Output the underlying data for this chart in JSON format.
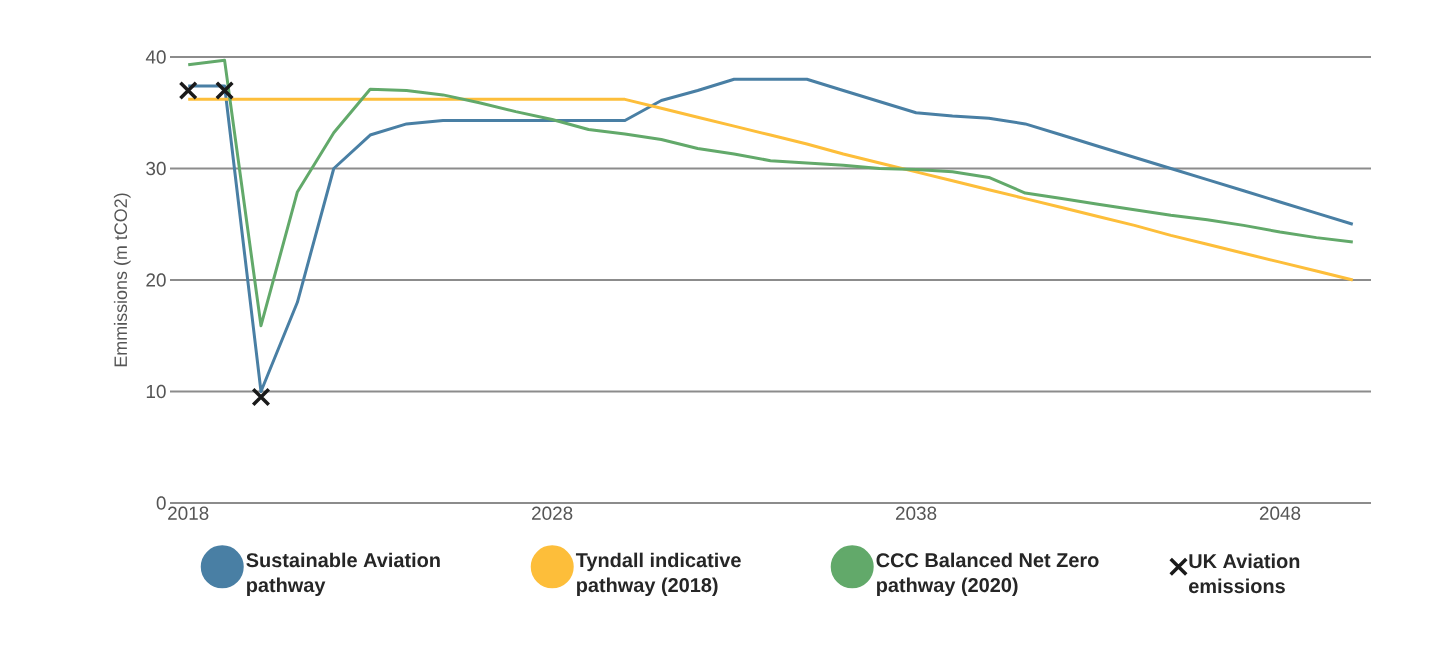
{
  "chart_data": {
    "type": "line",
    "ylabel": "Emmissions (m tCO2)",
    "x": [
      2018,
      2019,
      2020,
      2021,
      2022,
      2023,
      2024,
      2025,
      2026,
      2027,
      2028,
      2029,
      2030,
      2031,
      2032,
      2033,
      2034,
      2035,
      2036,
      2037,
      2038,
      2039,
      2040,
      2041,
      2042,
      2043,
      2044,
      2045,
      2046,
      2047,
      2048,
      2049,
      2050
    ],
    "series": [
      {
        "name": "Sustainable Aviation pathway",
        "color": "#497fa4",
        "marker": "none",
        "values": [
          37.4,
          37.4,
          10,
          18,
          30,
          33,
          34,
          34.3,
          34.3,
          34.3,
          34.3,
          34.3,
          34.3,
          36.1,
          37,
          38,
          38,
          38,
          37,
          36,
          35,
          34.7,
          34.5,
          34,
          33,
          32,
          31,
          30,
          29,
          28,
          27,
          26,
          25
        ]
      },
      {
        "name": "Tyndall indicative pathway (2018)",
        "color": "#fdbe3a",
        "marker": "none",
        "values": [
          36.2,
          36.2,
          36.2,
          36.2,
          36.2,
          36.2,
          36.2,
          36.2,
          36.2,
          36.2,
          36.2,
          36.2,
          36.2,
          35.4,
          34.6,
          33.8,
          33.0,
          32.2,
          31.3,
          30.5,
          29.7,
          28.9,
          28.1,
          27.3,
          26.5,
          25.7,
          24.9,
          24.0,
          23.2,
          22.4,
          21.6,
          20.8,
          20.0
        ]
      },
      {
        "name": "CCC Balanced Net Zero pathway (2020)",
        "color": "#62a96a",
        "marker": "none",
        "values": [
          39.3,
          39.7,
          15.9,
          27.9,
          33.2,
          37.1,
          37,
          36.6,
          35.9,
          35.1,
          34.4,
          33.5,
          33.1,
          32.6,
          31.8,
          31.3,
          30.7,
          30.5,
          30.3,
          30,
          29.9,
          29.7,
          29.2,
          27.8,
          27.3,
          26.8,
          26.3,
          25.8,
          25.4,
          24.9,
          24.3,
          23.8,
          23.4
        ]
      },
      {
        "name": "UK Aviation emissions",
        "type": "scatter",
        "color": "#1a1a1a",
        "marker": "cross",
        "x": [
          2018,
          2019,
          2020
        ],
        "values": [
          37.0,
          37.0,
          9.5
        ]
      }
    ],
    "xlim": [
      2017.5,
      2050.5
    ],
    "xticks": [
      2018,
      2028,
      2038,
      2048
    ],
    "ylim": [
      0,
      40
    ],
    "yticks": [
      0,
      10,
      20,
      30,
      40
    ],
    "grid": "y",
    "legend": "bottom"
  }
}
